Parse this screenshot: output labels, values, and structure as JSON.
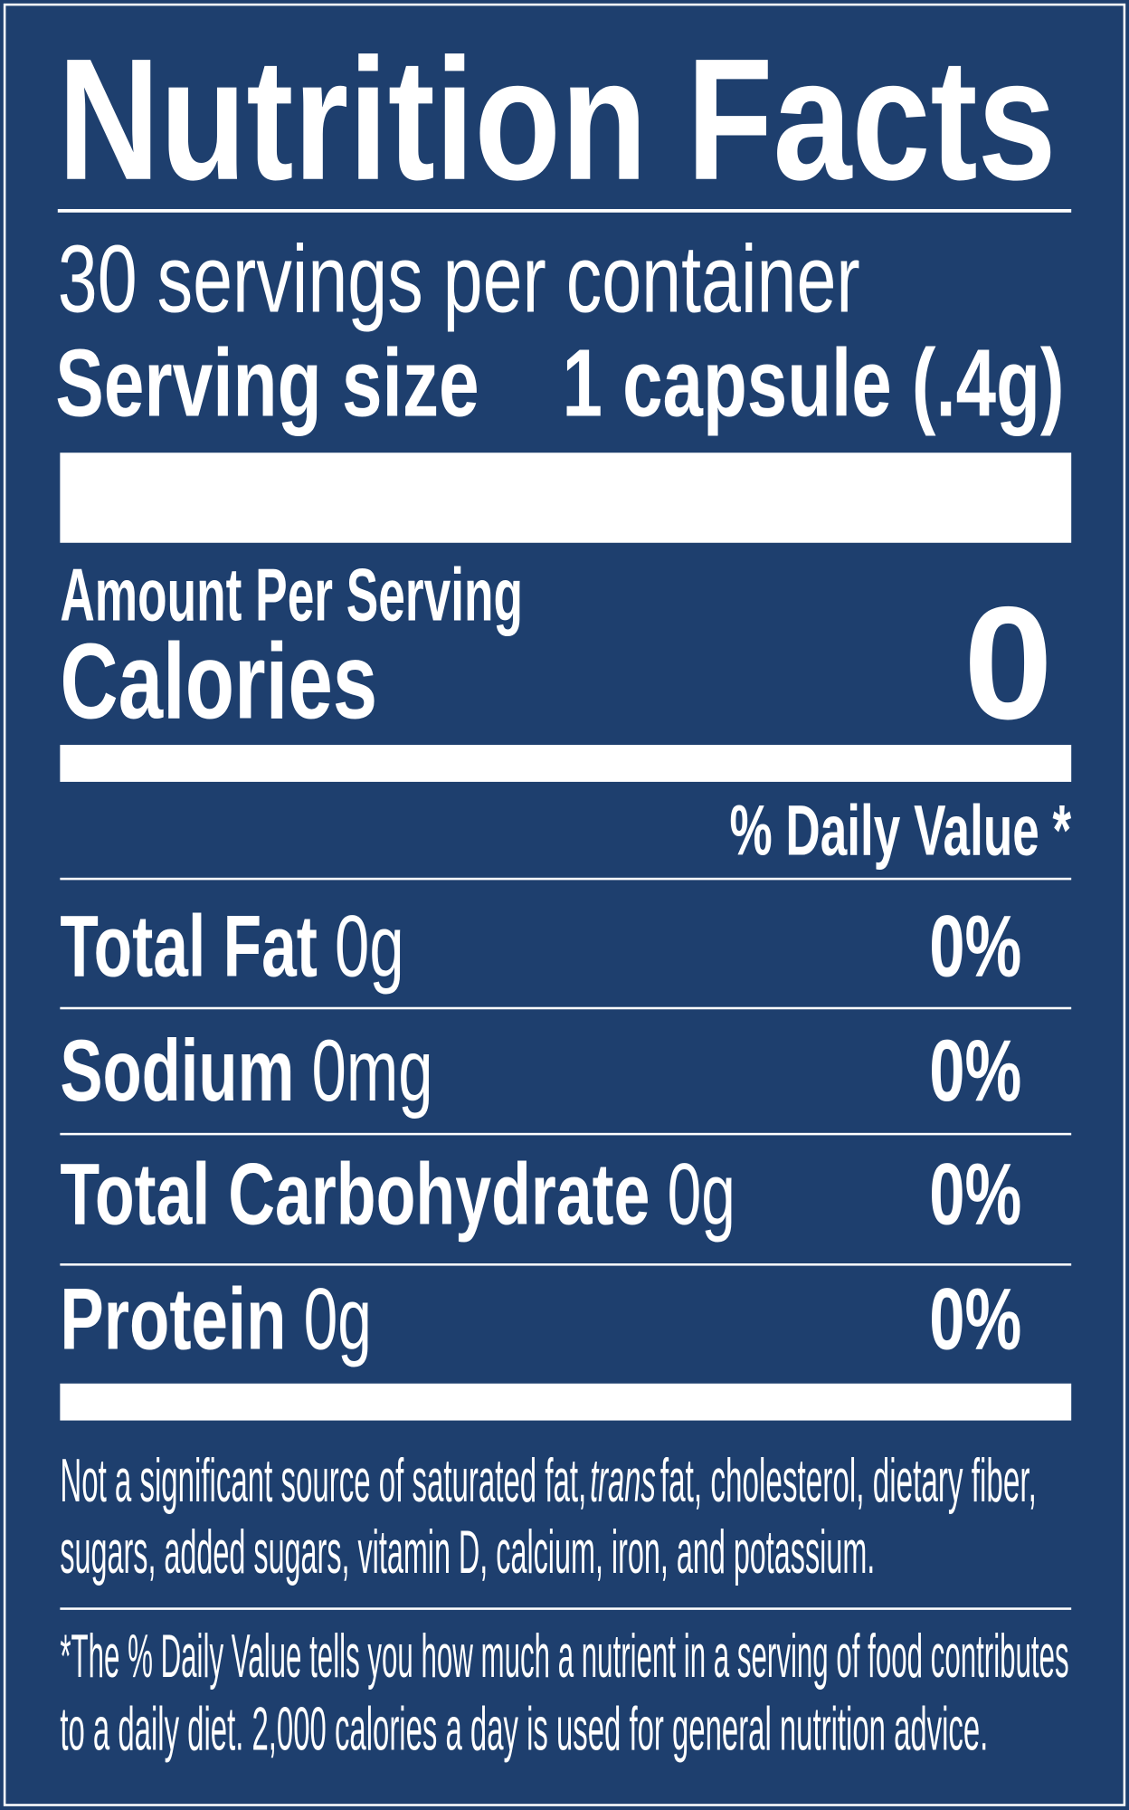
{
  "title": "Nutrition Facts",
  "servings": "30 servings per container",
  "serving_size": {
    "label": "Serving size",
    "value": "1 capsule (.4g)"
  },
  "amount_per_serving": "Amount Per Serving",
  "calories": {
    "label": "Calories",
    "value": 0
  },
  "daily_value_header": "% Daily Value *",
  "nutrients": [
    {
      "name": "Total Fat",
      "amount": "0g",
      "dv": "0%"
    },
    {
      "name": "Sodium",
      "amount": "0mg",
      "dv": "0%"
    },
    {
      "name": "Total Carbohydrate",
      "amount": "0g",
      "dv": "0%"
    },
    {
      "name": "Protein",
      "amount": "0g",
      "dv": "0%"
    }
  ],
  "footnote_1": {
    "line_1": [
      "Not a significant source of saturated fat,",
      "trans",
      "fat, cholesterol, dietary fiber,"
    ],
    "line_2": "sugars, added sugars, vitamin D, calcium, iron, and potassium."
  },
  "footnote_2": [
    "*The % Daily Value tells you how much a nutrient in a serving of food contributes",
    "to a daily diet. 2,000 calories a day is used for general nutrition advice."
  ]
}
